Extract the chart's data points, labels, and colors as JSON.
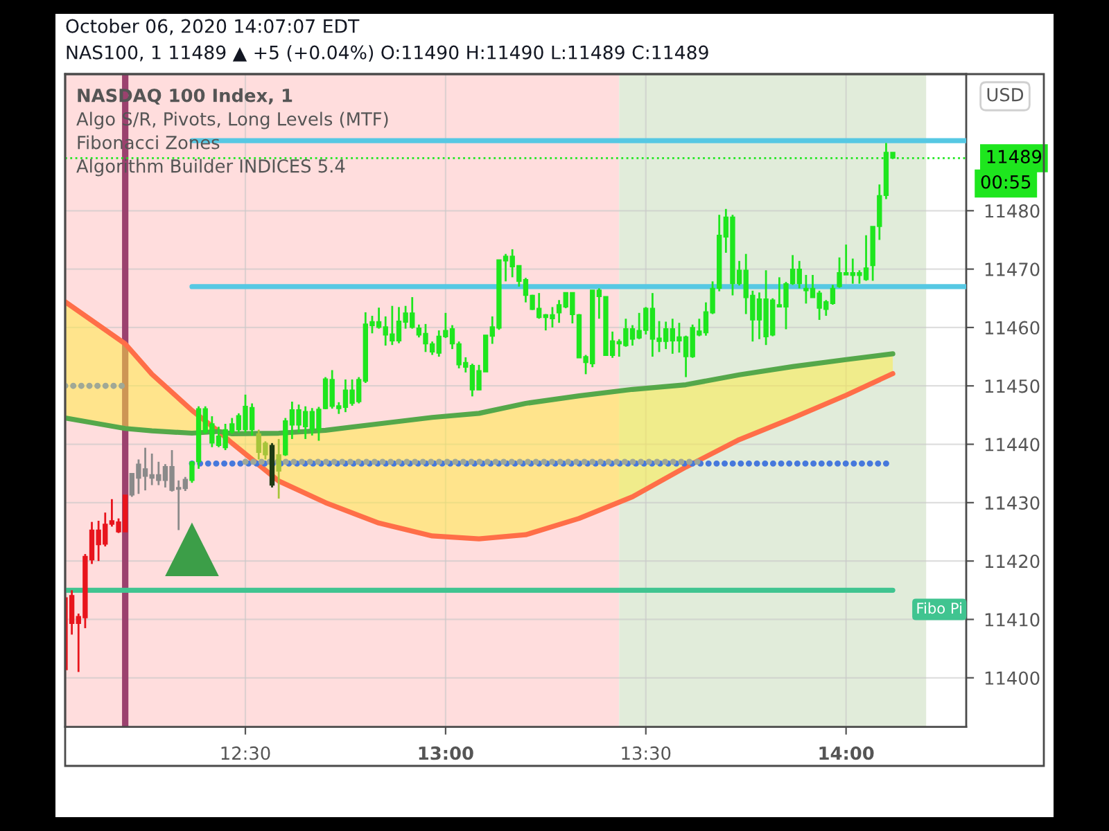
{
  "chart_data": {
    "type": "candlestick",
    "title": "October 06, 2020 14:07:07 EDT",
    "subtitle": "NAS100, 1 11489 ▲ +5 (+0.04%) O:11490 H:11490 L:11489 C:11489",
    "annotations": [
      "NASDAQ 100 Index, 1",
      "Algo S/R, Pivots, Long Levels (MTF)",
      "Fibonacci Zones",
      "Algorithm Builder INDICES 5.4",
      "00:55",
      "USD"
    ],
    "x": [
      "2020-10-06T12:03",
      "2020-10-06T12:04",
      "2020-10-06T12:05",
      "2020-10-06T12:06",
      "2020-10-06T12:07",
      "2020-10-06T12:08",
      "2020-10-06T12:09",
      "2020-10-06T12:10",
      "2020-10-06T12:11",
      "2020-10-06T12:12",
      "2020-10-06T12:13",
      "2020-10-06T12:14",
      "2020-10-06T12:15",
      "2020-10-06T12:16",
      "2020-10-06T12:17",
      "2020-10-06T12:18",
      "2020-10-06T12:19",
      "2020-10-06T12:20",
      "2020-10-06T12:21",
      "2020-10-06T12:22",
      "2020-10-06T12:23",
      "2020-10-06T12:24",
      "2020-10-06T12:25",
      "2020-10-06T12:26",
      "2020-10-06T12:27",
      "2020-10-06T12:28",
      "2020-10-06T12:29",
      "2020-10-06T12:30",
      "2020-10-06T12:31",
      "2020-10-06T12:32",
      "2020-10-06T12:33",
      "2020-10-06T12:34",
      "2020-10-06T12:35",
      "2020-10-06T12:36",
      "2020-10-06T12:37",
      "2020-10-06T12:38",
      "2020-10-06T12:39",
      "2020-10-06T12:40",
      "2020-10-06T12:41",
      "2020-10-06T12:42",
      "2020-10-06T12:43",
      "2020-10-06T12:44",
      "2020-10-06T12:45",
      "2020-10-06T12:46",
      "2020-10-06T12:47",
      "2020-10-06T12:48",
      "2020-10-06T12:49",
      "2020-10-06T12:50",
      "2020-10-06T12:51",
      "2020-10-06T12:52",
      "2020-10-06T12:53",
      "2020-10-06T12:54",
      "2020-10-06T12:55",
      "2020-10-06T12:56",
      "2020-10-06T12:57",
      "2020-10-06T12:58",
      "2020-10-06T12:59",
      "2020-10-06T13:00",
      "2020-10-06T13:01",
      "2020-10-06T13:02",
      "2020-10-06T13:03",
      "2020-10-06T13:04",
      "2020-10-06T13:05",
      "2020-10-06T13:06",
      "2020-10-06T13:07",
      "2020-10-06T13:08",
      "2020-10-06T13:09",
      "2020-10-06T13:10",
      "2020-10-06T13:11",
      "2020-10-06T13:12",
      "2020-10-06T13:13",
      "2020-10-06T13:14",
      "2020-10-06T13:15",
      "2020-10-06T13:16",
      "2020-10-06T13:17",
      "2020-10-06T13:18",
      "2020-10-06T13:19",
      "2020-10-06T13:20",
      "2020-10-06T13:21",
      "2020-10-06T13:22",
      "2020-10-06T13:23",
      "2020-10-06T13:24",
      "2020-10-06T13:25",
      "2020-10-06T13:26",
      "2020-10-06T13:27",
      "2020-10-06T13:28",
      "2020-10-06T13:29",
      "2020-10-06T13:30",
      "2020-10-06T13:31",
      "2020-10-06T13:32",
      "2020-10-06T13:33",
      "2020-10-06T13:34",
      "2020-10-06T13:35",
      "2020-10-06T13:36",
      "2020-10-06T13:37",
      "2020-10-06T13:38",
      "2020-10-06T13:39",
      "2020-10-06T13:40",
      "2020-10-06T13:41",
      "2020-10-06T13:42",
      "2020-10-06T13:43",
      "2020-10-06T13:44",
      "2020-10-06T13:45",
      "2020-10-06T13:46",
      "2020-10-06T13:47",
      "2020-10-06T13:48",
      "2020-10-06T13:49",
      "2020-10-06T13:50",
      "2020-10-06T13:51",
      "2020-10-06T13:52",
      "2020-10-06T13:53",
      "2020-10-06T13:54",
      "2020-10-06T13:55",
      "2020-10-06T13:56",
      "2020-10-06T13:57",
      "2020-10-06T13:58",
      "2020-10-06T13:59",
      "2020-10-06T14:00",
      "2020-10-06T14:01",
      "2020-10-06T14:02",
      "2020-10-06T14:03",
      "2020-10-06T14:04",
      "2020-10-06T14:05",
      "2020-10-06T14:06",
      "2020-10-06T14:07"
    ],
    "ohlc": [
      [
        11401.4,
        11413.7,
        11401.4,
        11413.7
      ],
      [
        11409.3,
        11415.0,
        11407.4,
        11414.1
      ],
      [
        11409.3,
        11411.0,
        11401.0,
        11410.5
      ],
      [
        11410.3,
        11421.2,
        11408.5,
        11420.8
      ],
      [
        11420.2,
        11426.7,
        11419.5,
        11425.3
      ],
      [
        11422.8,
        11426.9,
        11420.0,
        11425.3
      ],
      [
        11422.9,
        11428.3,
        11422.5,
        11426.3
      ],
      [
        11426.3,
        11430.6,
        11425.9,
        11426.9
      ],
      [
        11425.0,
        11427.3,
        11424.8,
        11426.7
      ],
      [
        11425.0,
        11431.3,
        11425.0,
        11431.3
      ],
      [
        11431.3,
        11435.0,
        11431.0,
        11435.0
      ],
      [
        11434.2,
        11437.4,
        11431.5,
        11436.6
      ],
      [
        11434.5,
        11439.4,
        11432.1,
        11435.8
      ],
      [
        11434.2,
        11438.4,
        11433.0,
        11434.8
      ],
      [
        11433.8,
        11437.0,
        11433.0,
        11434.8
      ],
      [
        11433.8,
        11436.6,
        11432.6,
        11436.2
      ],
      [
        11432.1,
        11439.0,
        11431.9,
        11436.2
      ],
      [
        11432.3,
        11433.8,
        11425.3,
        11432.6
      ],
      [
        11432.4,
        11434.4,
        11432.0,
        11434.0
      ],
      [
        11437.0,
        11437.0,
        11433.4,
        11433.8
      ],
      [
        11446.1,
        11446.5,
        11435.8,
        11437.0
      ],
      [
        11446.1,
        11446.5,
        11441.8,
        11442.1
      ],
      [
        11443.5,
        11444.8,
        11439.5,
        11440.2
      ],
      [
        11441.4,
        11443.0,
        11439.5,
        11439.8
      ],
      [
        11442.5,
        11443.5,
        11439.0,
        11439.4
      ],
      [
        11443.5,
        11444.5,
        11441.8,
        11442.1
      ],
      [
        11444.9,
        11445.3,
        11442.0,
        11442.5
      ],
      [
        11446.5,
        11448.5,
        11442.0,
        11442.5
      ],
      [
        11446.3,
        11447.0,
        11441.5,
        11442.5
      ],
      [
        11438.6,
        11442.5,
        11437.4,
        11441.8
      ],
      [
        11438.2,
        11440.5,
        11437.4,
        11440.2
      ],
      [
        11433.0,
        11440.2,
        11432.6,
        11439.8
      ],
      [
        11435.4,
        11440.9,
        11430.7,
        11438.2
      ],
      [
        11444.0,
        11444.5,
        11438.0,
        11438.2
      ],
      [
        11445.9,
        11447.3,
        11440.9,
        11443.3
      ],
      [
        11445.9,
        11446.8,
        11442.0,
        11443.3
      ],
      [
        11445.6,
        11446.5,
        11440.9,
        11443.0
      ],
      [
        11445.6,
        11446.2,
        11441.5,
        11442.5
      ],
      [
        11446.0,
        11446.4,
        11440.6,
        11442.5
      ],
      [
        11451.2,
        11451.5,
        11446.0,
        11446.1
      ],
      [
        11451.1,
        11452.7,
        11446.1,
        11446.5
      ],
      [
        11446.6,
        11447.2,
        11445.2,
        11446.1
      ],
      [
        11449.3,
        11451.1,
        11445.5,
        11446.3
      ],
      [
        11449.3,
        11451.1,
        11446.6,
        11447.0
      ],
      [
        11451.1,
        11451.5,
        11447.0,
        11447.3
      ],
      [
        11460.6,
        11462.6,
        11450.5,
        11450.8
      ],
      [
        11461.0,
        11462.0,
        11459.0,
        11460.3
      ],
      [
        11461.0,
        11463.4,
        11459.8,
        11460.0
      ],
      [
        11460.1,
        11461.9,
        11456.9,
        11458.7
      ],
      [
        11458.9,
        11463.7,
        11457.0,
        11457.7
      ],
      [
        11461.1,
        11463.5,
        11457.3,
        11457.7
      ],
      [
        11462.5,
        11463.7,
        11459.8,
        11460.9
      ],
      [
        11462.5,
        11465.2,
        11459.8,
        11460.0
      ],
      [
        11459.9,
        11460.5,
        11458.3,
        11458.7
      ],
      [
        11459.0,
        11460.6,
        11455.8,
        11457.2
      ],
      [
        11457.2,
        11457.6,
        11455.3,
        11455.8
      ],
      [
        11458.5,
        11459.5,
        11455.0,
        11455.6
      ],
      [
        11459.5,
        11462.5,
        11458.2,
        11458.4
      ],
      [
        11459.8,
        11460.4,
        11456.3,
        11457.2
      ],
      [
        11457.2,
        11457.6,
        11453.0,
        11453.6
      ],
      [
        11454.0,
        11454.9,
        11452.3,
        11453.2
      ],
      [
        11453.5,
        11453.8,
        11448.2,
        11449.3
      ],
      [
        11452.6,
        11453.6,
        11449.3,
        11449.3
      ],
      [
        11458.7,
        11458.7,
        11452.4,
        11452.4
      ],
      [
        11460.1,
        11461.9,
        11457.2,
        11458.5
      ],
      [
        11471.6,
        11471.6,
        11459.6,
        11459.9
      ],
      [
        11472.2,
        11472.6,
        11467.9,
        11471.4
      ],
      [
        11472.2,
        11473.4,
        11468.6,
        11470.4
      ],
      [
        11470.6,
        11470.6,
        11467.0,
        11467.9
      ],
      [
        11468.2,
        11468.5,
        11464.3,
        11465.5
      ],
      [
        11465.5,
        11465.6,
        11463.0,
        11463.1
      ],
      [
        11463.3,
        11465.9,
        11461.5,
        11461.7
      ],
      [
        11462.2,
        11462.3,
        11459.5,
        11461.7
      ],
      [
        11462.2,
        11463.5,
        11460.0,
        11461.5
      ],
      [
        11463.9,
        11464.7,
        11460.8,
        11462.5
      ],
      [
        11466.0,
        11466.0,
        11463.3,
        11463.5
      ],
      [
        11466.0,
        11466.0,
        11460.7,
        11462.2
      ],
      [
        11462.2,
        11462.3,
        11454.8,
        11454.8
      ],
      [
        11455.0,
        11455.3,
        11452.0,
        11454.0
      ],
      [
        11466.4,
        11466.4,
        11453.2,
        11453.8
      ],
      [
        11466.4,
        11466.7,
        11461.5,
        11465.3
      ],
      [
        11465.3,
        11465.3,
        11455.2,
        11455.2
      ],
      [
        11457.7,
        11459.3,
        11454.8,
        11455.2
      ],
      [
        11457.6,
        11458.0,
        11455.0,
        11457.2
      ],
      [
        11459.8,
        11461.5,
        11456.7,
        11456.9
      ],
      [
        11459.8,
        11460.4,
        11456.9,
        11458.0
      ],
      [
        11459.5,
        11462.5,
        11458.0,
        11458.2
      ],
      [
        11463.3,
        11463.5,
        11458.8,
        11459.5
      ],
      [
        11463.3,
        11465.9,
        11455.0,
        11458.0
      ],
      [
        11458.2,
        11461.1,
        11455.8,
        11457.6
      ],
      [
        11459.8,
        11461.0,
        11456.3,
        11457.6
      ],
      [
        11459.8,
        11461.5,
        11455.5,
        11457.7
      ],
      [
        11458.4,
        11460.8,
        11455.7,
        11457.7
      ],
      [
        11458.4,
        11458.6,
        11451.5,
        11455.0
      ],
      [
        11460.0,
        11460.5,
        11454.8,
        11455.0
      ],
      [
        11459.4,
        11461.5,
        11458.5,
        11458.7
      ],
      [
        11462.7,
        11464.3,
        11458.6,
        11459.1
      ],
      [
        11466.7,
        11467.9,
        11462.3,
        11462.5
      ],
      [
        11475.8,
        11479.3,
        11466.2,
        11466.7
      ],
      [
        11478.9,
        11480.3,
        11472.8,
        11475.5
      ],
      [
        11478.9,
        11479.3,
        11465.5,
        11467.5
      ],
      [
        11469.8,
        11471.4,
        11467.2,
        11467.5
      ],
      [
        11469.8,
        11472.6,
        11462.3,
        11465.1
      ],
      [
        11465.5,
        11466.3,
        11457.6,
        11461.3
      ],
      [
        11464.9,
        11466.0,
        11458.0,
        11461.3
      ],
      [
        11464.9,
        11469.8,
        11457.0,
        11458.4
      ],
      [
        11464.7,
        11465.0,
        11458.5,
        11458.7
      ],
      [
        11463.9,
        11468.6,
        11463.5,
        11463.5
      ],
      [
        11467.5,
        11467.8,
        11459.7,
        11463.5
      ],
      [
        11470.0,
        11472.4,
        11467.3,
        11467.5
      ],
      [
        11470.0,
        11471.4,
        11466.7,
        11467.5
      ],
      [
        11466.7,
        11469.0,
        11464.1,
        11466.3
      ],
      [
        11466.7,
        11469.0,
        11465.1,
        11465.1
      ],
      [
        11465.9,
        11466.3,
        11461.3,
        11463.3
      ],
      [
        11464.4,
        11464.7,
        11462.0,
        11463.1
      ],
      [
        11466.7,
        11467.3,
        11463.9,
        11464.1
      ],
      [
        11469.4,
        11472.0,
        11466.8,
        11467.0
      ],
      [
        11469.4,
        11474.2,
        11469.0,
        11469.0
      ],
      [
        11469.4,
        11471.8,
        11467.5,
        11468.9
      ],
      [
        11469.4,
        11469.8,
        11467.5,
        11468.9
      ],
      [
        11470.2,
        11475.8,
        11468.0,
        11468.2
      ],
      [
        11477.3,
        11477.3,
        11468.0,
        11470.6
      ],
      [
        11482.6,
        11484.5,
        11475.0,
        11477.3
      ],
      [
        11490.0,
        11491.6,
        11482.0,
        11482.6
      ],
      [
        11490.0,
        11490.0,
        11489.0,
        11489.0
      ]
    ],
    "colors": [
      "#e8141c",
      "#e8141c",
      "#e8141c",
      "#e8141c",
      "#e8141c",
      "#e8141c",
      "#e8141c",
      "#e8141c",
      "#e8141c",
      "#e8141c",
      "#8a8a8a",
      "#8a8a8a",
      "#8a8a8a",
      "#8a8a8a",
      "#8a8a8a",
      "#8a8a8a",
      "#8a8a8a",
      "#8a8a8a",
      "#8a8a8a",
      "#1ee61e",
      "#1ee61e",
      "#1ee61e",
      "#1ee61e",
      "#1ee61e",
      "#1ee61e",
      "#1ee61e",
      "#1ee61e",
      "#1ee61e",
      "#1ee61e",
      "#a6c43a",
      "#a6c43a",
      "#1e3a14",
      "#a6c43a",
      "#1ee61e",
      "#1ee61e",
      "#1ee61e",
      "#1ee61e",
      "#1ee61e",
      "#1ee61e",
      "#1ee61e",
      "#1ee61e",
      "#1ee61e",
      "#1ee61e",
      "#1ee61e",
      "#1ee61e",
      "#1ee61e",
      "#1ee61e",
      "#1ee61e",
      "#1ee61e",
      "#1ee61e",
      "#1ee61e",
      "#1ee61e",
      "#1ee61e",
      "#1ee61e",
      "#1ee61e",
      "#1ee61e",
      "#1ee61e",
      "#1ee61e",
      "#1ee61e",
      "#1ee61e",
      "#1ee61e",
      "#1ee61e",
      "#1ee61e",
      "#1ee61e",
      "#1ee61e",
      "#1ee61e",
      "#1ee61e",
      "#1ee61e",
      "#1ee61e",
      "#1ee61e",
      "#1ee61e",
      "#1ee61e",
      "#1ee61e",
      "#1ee61e",
      "#1ee61e",
      "#1ee61e",
      "#1ee61e",
      "#1ee61e",
      "#1ee61e",
      "#1ee61e",
      "#1ee61e",
      "#1ee61e",
      "#1ee61e",
      "#1ee61e",
      "#1ee61e",
      "#1ee61e",
      "#1ee61e",
      "#1ee61e",
      "#1ee61e",
      "#1ee61e",
      "#1ee61e",
      "#1ee61e",
      "#1ee61e",
      "#1ee61e",
      "#1ee61e",
      "#1ee61e",
      "#1ee61e",
      "#1ee61e",
      "#1ee61e",
      "#1ee61e",
      "#1ee61e",
      "#1ee61e",
      "#1ee61e",
      "#1ee61e",
      "#1ee61e",
      "#1ee61e",
      "#1ee61e",
      "#1ee61e",
      "#1ee61e",
      "#1ee61e",
      "#1ee61e",
      "#1ee61e",
      "#1ee61e",
      "#1ee61e",
      "#1ee61e",
      "#1ee61e",
      "#1ee61e",
      "#1ee61e",
      "#1ee61e",
      "#1ee61e",
      "#1ee61e",
      "#1ee61e",
      "#1ee61e",
      "#1ee61e",
      "#1ee61e"
    ],
    "series": [
      {
        "type": "line",
        "color": "#ff6e48",
        "x": [
          "2020-10-06T12:03",
          "2020-10-06T12:08",
          "2020-10-06T12:12",
          "2020-10-06T12:16",
          "2020-10-06T12:22",
          "2020-10-06T12:26",
          "2020-10-06T12:28",
          "2020-10-06T12:35",
          "2020-10-06T12:42",
          "2020-10-06T12:50",
          "2020-10-06T12:58",
          "2020-10-06T13:05",
          "2020-10-06T13:12",
          "2020-10-06T13:20",
          "2020-10-06T13:28",
          "2020-10-06T13:36",
          "2020-10-06T13:44",
          "2020-10-06T13:52",
          "2020-10-06T14:00",
          "2020-10-06T14:07"
        ],
        "values": [
          11464.4,
          11460.4,
          11457.2,
          11452.0,
          11445.8,
          11442.2,
          11440.2,
          11433.7,
          11430.0,
          11426.5,
          11424.3,
          11423.8,
          11424.5,
          11427.3,
          11431.0,
          11436.1,
          11440.8,
          11444.5,
          11448.4,
          11452.1
        ]
      },
      {
        "type": "line",
        "color": "#55a84a",
        "x": [
          "2020-10-06T12:03",
          "2020-10-06T12:08",
          "2020-10-06T12:12",
          "2020-10-06T12:16",
          "2020-10-06T12:22",
          "2020-10-06T12:26",
          "2020-10-06T12:28",
          "2020-10-06T12:35",
          "2020-10-06T12:42",
          "2020-10-06T12:50",
          "2020-10-06T12:58",
          "2020-10-06T13:05",
          "2020-10-06T13:12",
          "2020-10-06T13:20",
          "2020-10-06T13:28",
          "2020-10-06T13:36",
          "2020-10-06T13:44",
          "2020-10-06T13:52",
          "2020-10-06T14:00",
          "2020-10-06T14:07"
        ],
        "values": [
          11444.5,
          11443.5,
          11442.7,
          11442.3,
          11441.9,
          11442.2,
          11441.8,
          11441.9,
          11442.4,
          11443.5,
          11444.6,
          11445.3,
          11447.0,
          11448.3,
          11449.4,
          11450.2,
          11451.9,
          11453.3,
          11454.5,
          11455.5
        ],
        "lower": [
          11444.5,
          11443.5,
          11442.7,
          11442.3,
          11441.9,
          11442.2,
          11440.2,
          11433.7,
          11430.0,
          11426.5,
          11424.3,
          11423.8,
          11424.5,
          11427.3,
          11431.0,
          11436.1,
          11440.8,
          11444.5,
          11448.4,
          11452.1
        ],
        "upper": [
          11464.4,
          11460.4,
          11457.2,
          11452.0,
          11445.8,
          11442.2,
          11441.8,
          11441.9,
          11442.4,
          11443.5,
          11444.6,
          11445.3,
          11447.0,
          11448.3,
          11449.4,
          11450.2,
          11451.9,
          11453.3,
          11454.5,
          11455.5
        ]
      },
      {
        "type": "line",
        "color": "#a0a896",
        "line_style": "dotted",
        "x": [
          "2020-10-06T12:03",
          "2020-10-06T12:12"
        ],
        "values": [
          11450,
          11450
        ]
      },
      {
        "type": "line",
        "color": "#4678dc",
        "line_style": "dotted",
        "x": [
          "2020-10-06T12:22",
          "2020-10-06T14:07"
        ],
        "values": [
          11436.7,
          11436.7
        ]
      },
      {
        "type": "line",
        "color": "#a0a896",
        "line_style": "dotted",
        "x": [
          "2020-10-06T12:30",
          "2020-10-06T13:38"
        ],
        "values": [
          11437.0,
          11437.0
        ]
      },
      {
        "type": "line",
        "color": "#56c8e3",
        "x": [
          "2020-10-06T12:22",
          "2020-10-06T14:18"
        ],
        "values": [
          11492,
          11492
        ]
      },
      {
        "type": "line",
        "color": "#56c8e3",
        "x": [
          "2020-10-06T12:22",
          "2020-10-06T14:18"
        ],
        "values": [
          11467,
          11467
        ]
      },
      {
        "type": "line",
        "name": "Fibo Pi",
        "color": "#40c490",
        "x": [
          "2020-10-06T12:03",
          "2020-10-06T14:07"
        ],
        "values": [
          11415,
          11415
        ]
      },
      {
        "type": "scatter",
        "marker": "triangle",
        "color": "#3c9e48",
        "x": [
          "2020-10-06T12:22"
        ],
        "values": [
          11422
        ]
      }
    ],
    "bands": [
      {
        "axis": "x",
        "from": "2020-10-06T12:03",
        "to": "2020-10-06T13:26",
        "color": "#ffdddd"
      },
      {
        "axis": "x",
        "from": "2020-10-06T13:26",
        "to": "2020-10-06T14:12",
        "color": "#e1ecda"
      }
    ],
    "ref_lines": [
      {
        "axis": "x",
        "value": "2020-10-06T12:12",
        "color": "#9b416e"
      },
      {
        "axis": "y",
        "value": 11489,
        "label": "11489",
        "color": "#1ee61e",
        "line_style": "dotted"
      }
    ],
    "xlim": [
      "2020-10-06T12:03",
      "2020-10-06T14:18"
    ],
    "xticks": [
      {
        "value": "2020-10-06T12:30",
        "label": "12:30"
      },
      {
        "value": "2020-10-06T13:00",
        "label": "13:00"
      },
      {
        "value": "2020-10-06T13:30",
        "label": "13:30"
      },
      {
        "value": "2020-10-06T14:00",
        "label": "14:00"
      }
    ],
    "ylim": [
      11391.6,
      11503.4
    ],
    "yticks": [
      11400,
      11410,
      11420,
      11430,
      11440,
      11450,
      11460,
      11470,
      11480
    ],
    "grid": true
  }
}
